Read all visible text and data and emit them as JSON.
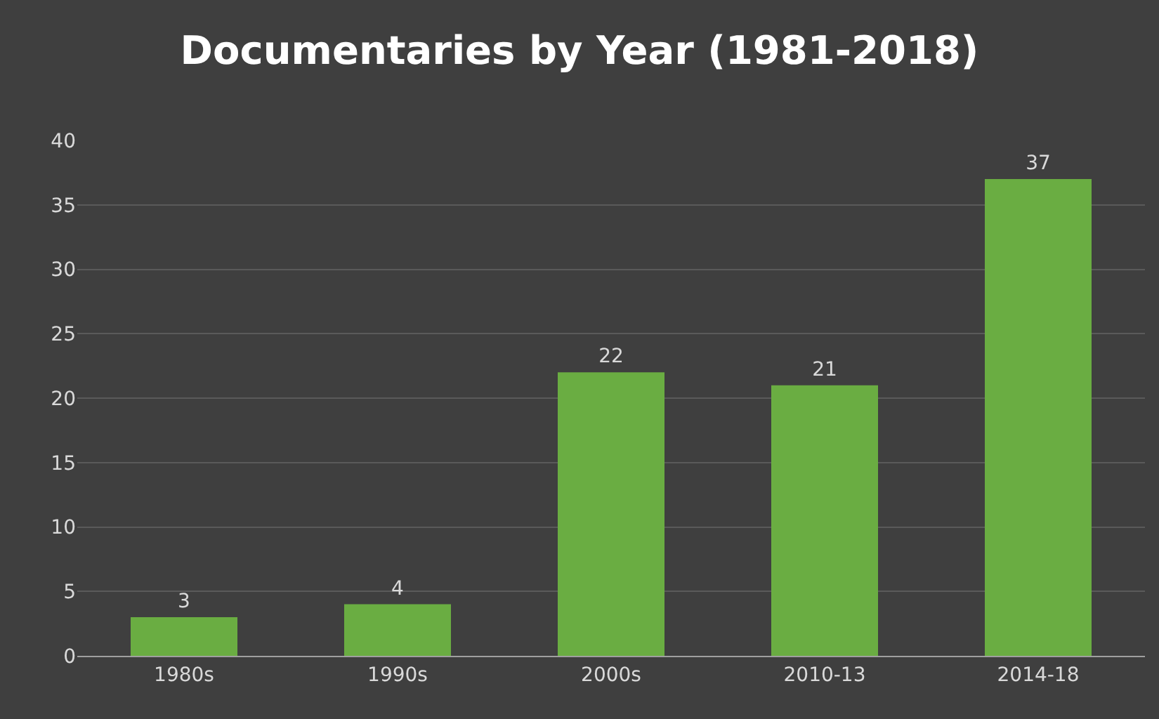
{
  "chart_data": {
    "type": "bar",
    "title": "Documentaries by Year (1981-2018)",
    "categories": [
      "1980s",
      "1990s",
      "2000s",
      "2010-13",
      "2014-18"
    ],
    "values": [
      3,
      4,
      22,
      21,
      37
    ],
    "color": "#6aad42",
    "ylim": [
      0,
      40
    ],
    "yticks": [
      0,
      5,
      10,
      15,
      20,
      25,
      30,
      35,
      40
    ],
    "grid": "y",
    "data_labels": true,
    "legend": false
  }
}
